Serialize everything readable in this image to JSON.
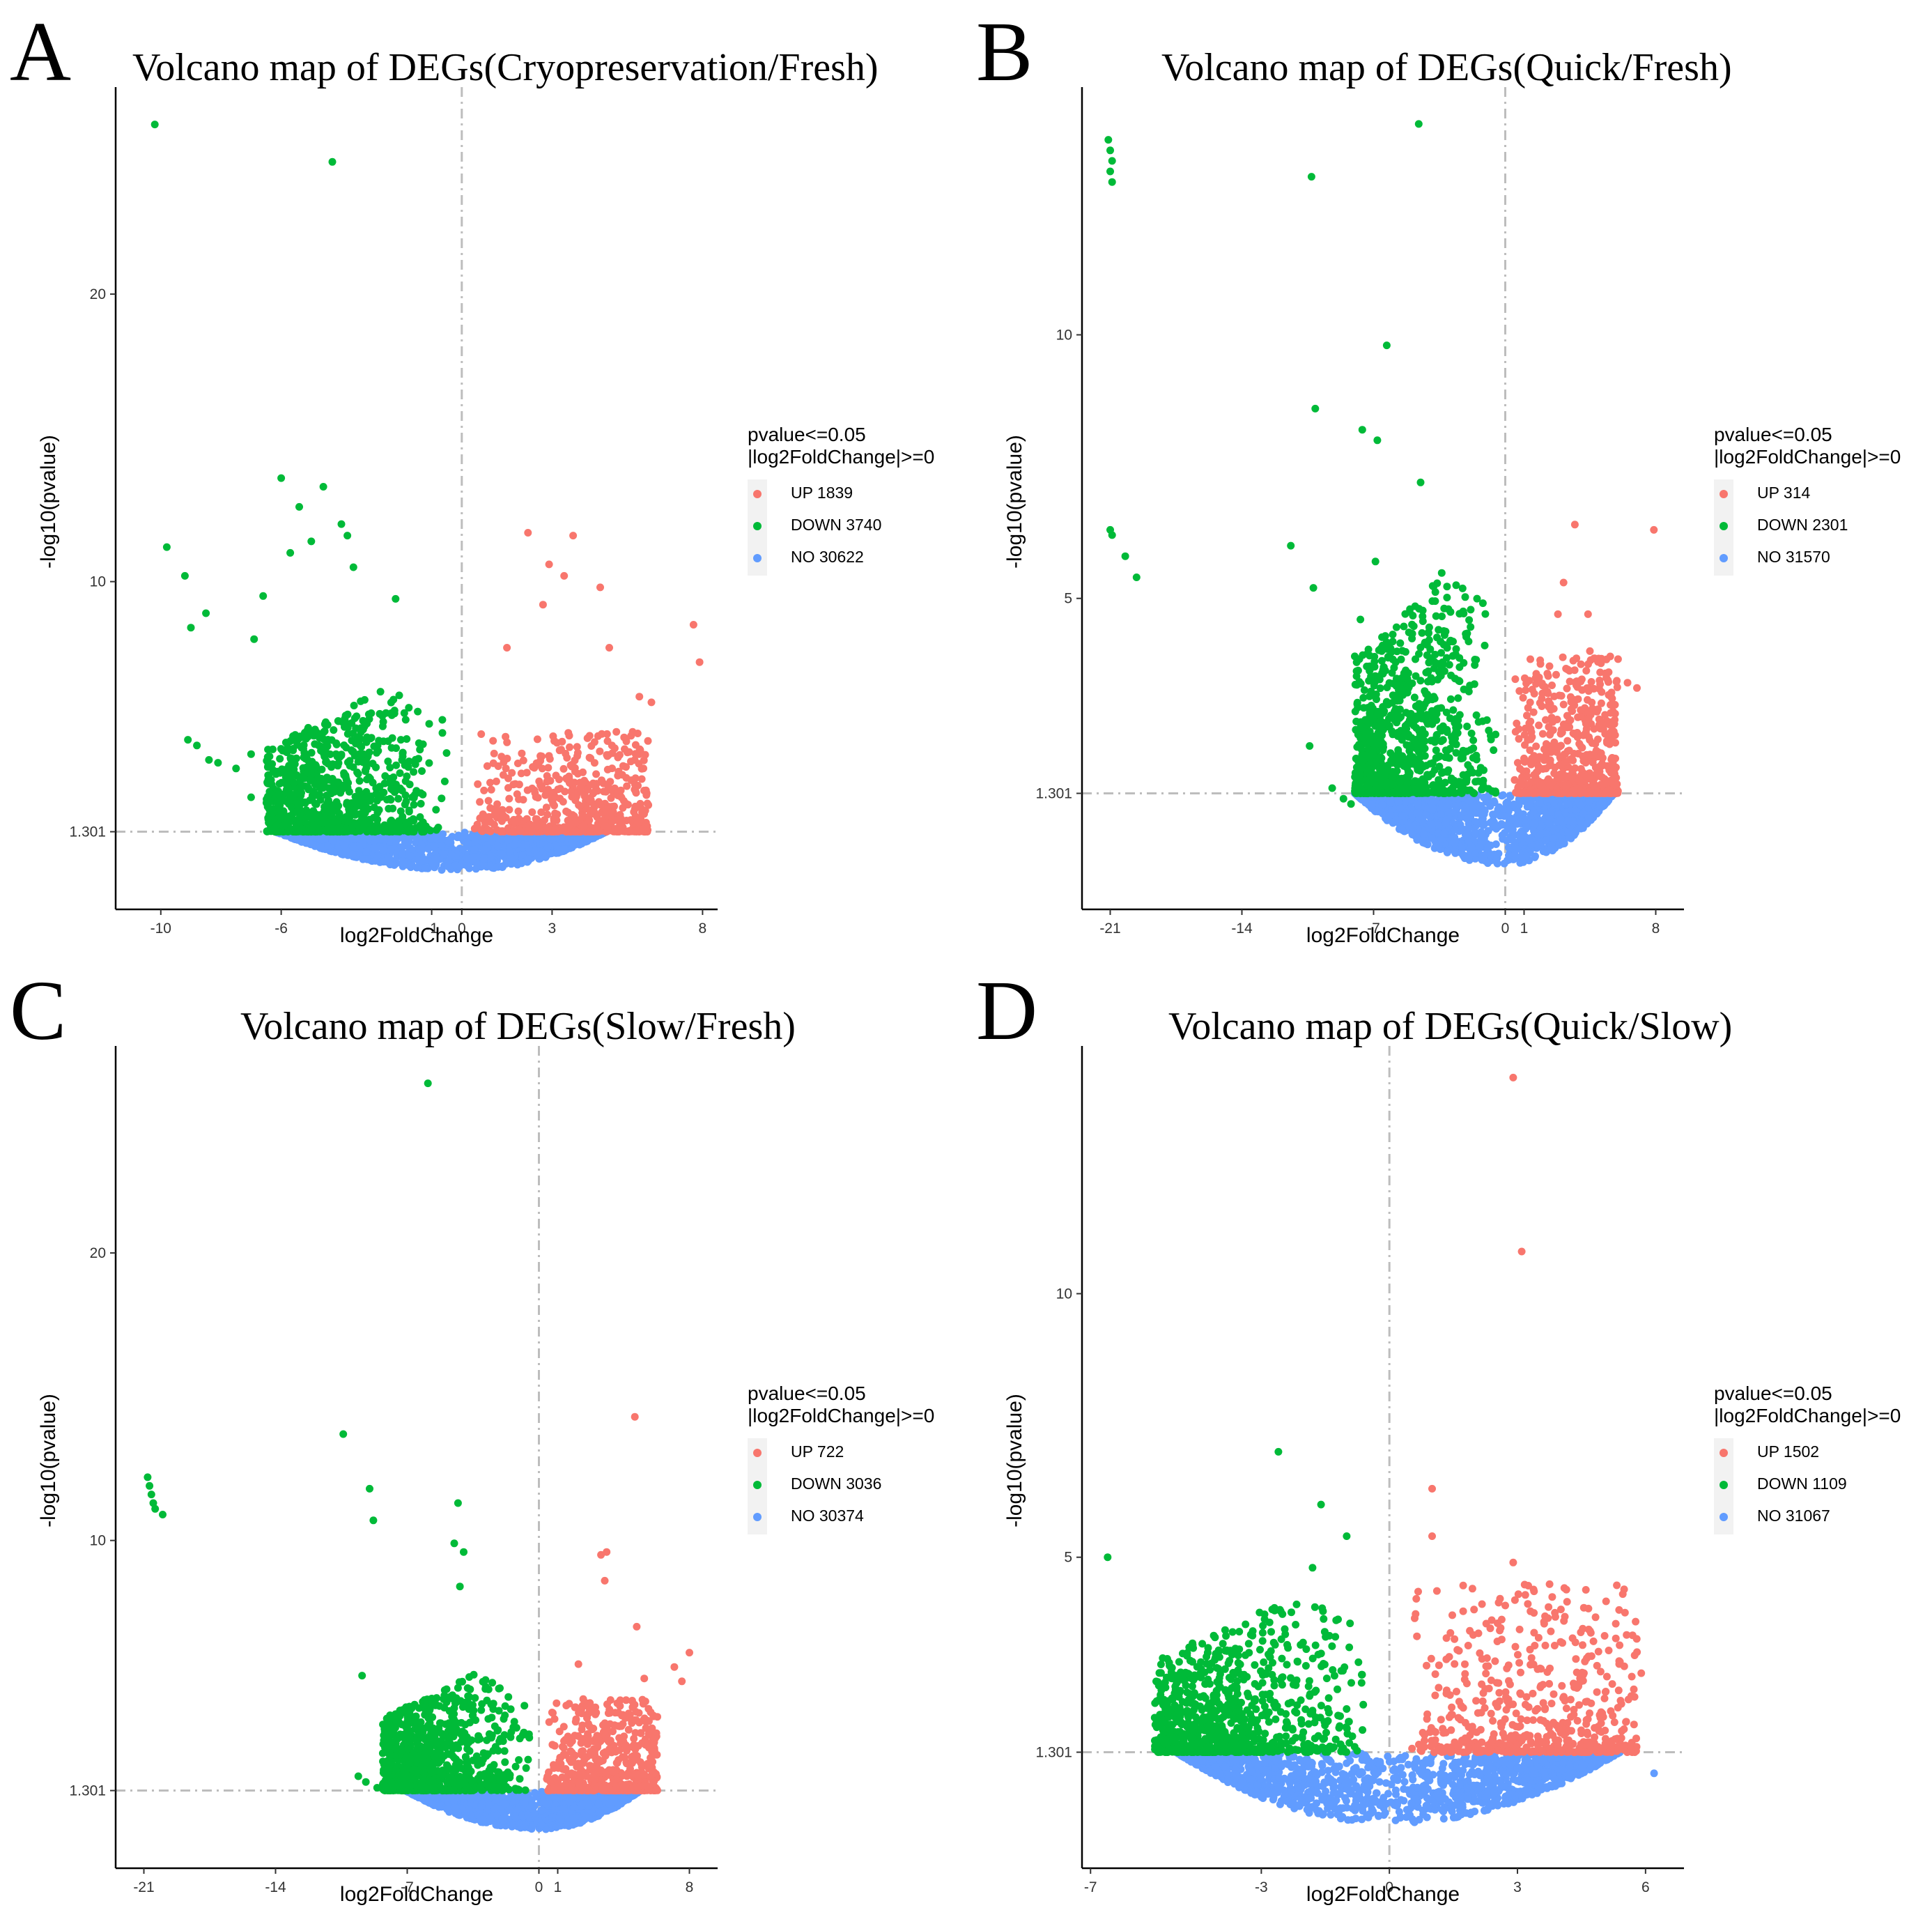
{
  "figure": {
    "legend_title_line1": "pvalue<=0.05",
    "legend_title_line2": "|log2FoldChange|>=0",
    "colors": {
      "up": "#f8766d",
      "down": "#00ba38",
      "no": "#619cff",
      "guide": "#bdbdbd",
      "axis": "#000000"
    }
  },
  "chart_data": [
    {
      "panel_letter": "A",
      "type": "scatter",
      "title": "Volcano map of DEGs(Cryopreservation/Fresh)",
      "xlabel": "log2FoldChange",
      "ylabel": "-log10(pvalue)",
      "xlim": [
        -11.5,
        8.5
      ],
      "ylim": [
        -1.4,
        27.2
      ],
      "xticks": [
        -10,
        -6,
        -1,
        0,
        3,
        8
      ],
      "yticks": [
        1.301,
        10,
        20
      ],
      "ytick_labels": [
        "1.301",
        "10",
        "20"
      ],
      "vline_x": 0,
      "hline_y": 1.301,
      "legend": [
        {
          "key": "up",
          "label": "UP 1839"
        },
        {
          "key": "down",
          "label": "DOWN 3740"
        },
        {
          "key": "no",
          "label": "NO 30622"
        }
      ],
      "cloud": {
        "down_xmin": -6.5,
        "up_xmax": 6.2,
        "no_xmin": -6.2,
        "no_xmax": 4.8,
        "down_peak": 5,
        "up_peak": 3.5
      },
      "outliers": {
        "down": [
          [
            -10.2,
            25.9
          ],
          [
            -4.3,
            24.6
          ],
          [
            -9.8,
            11.2
          ],
          [
            -9.2,
            10.2
          ],
          [
            -9.0,
            8.4
          ],
          [
            -8.5,
            8.9
          ],
          [
            -6.0,
            13.6
          ],
          [
            -4.6,
            13.3
          ],
          [
            -5.4,
            12.6
          ],
          [
            -4.0,
            12.0
          ],
          [
            -3.8,
            11.6
          ],
          [
            -5.0,
            11.4
          ],
          [
            -3.6,
            10.5
          ],
          [
            -6.6,
            9.5
          ],
          [
            -6.9,
            8.0
          ],
          [
            -5.7,
            11.0
          ],
          [
            -2.2,
            9.4
          ],
          [
            -9.1,
            4.5
          ],
          [
            -8.8,
            4.3
          ],
          [
            -8.4,
            3.8
          ],
          [
            -8.1,
            3.7
          ],
          [
            -7.5,
            3.5
          ],
          [
            -7.0,
            2.5
          ],
          [
            -7.0,
            4.0
          ]
        ],
        "up": [
          [
            2.2,
            11.7
          ],
          [
            3.7,
            11.6
          ],
          [
            2.9,
            10.6
          ],
          [
            3.4,
            10.2
          ],
          [
            4.6,
            9.8
          ],
          [
            2.7,
            9.2
          ],
          [
            7.7,
            8.5
          ],
          [
            7.9,
            7.2
          ],
          [
            4.9,
            7.7
          ],
          [
            1.5,
            7.7
          ],
          [
            5.9,
            6.0
          ],
          [
            6.3,
            5.8
          ]
        ]
      }
    },
    {
      "panel_letter": "B",
      "type": "scatter",
      "title": "Volcano map of DEGs(Quick/Fresh)",
      "xlabel": "log2FoldChange",
      "ylabel": "-log10(pvalue)",
      "xlim": [
        -22.5,
        9.5
      ],
      "ylim": [
        -0.9,
        14.7
      ],
      "xticks": [
        -21,
        -14,
        -7,
        0,
        1,
        8
      ],
      "yticks": [
        1.301,
        5,
        10
      ],
      "ytick_labels": [
        "1.301",
        "5",
        "10"
      ],
      "vline_x": 0,
      "hline_y": 1.301,
      "legend": [
        {
          "key": "up",
          "label": "UP 314"
        },
        {
          "key": "down",
          "label": "DOWN 2301"
        },
        {
          "key": "no",
          "label": "NO 31570"
        }
      ],
      "cloud": {
        "down_xmin": -8.0,
        "up_xmax": 6.0,
        "no_xmin": -8.0,
        "no_xmax": 5.8,
        "down_peak": 4.3,
        "up_peak": 2.6
      },
      "outliers": {
        "down": [
          [
            -21.1,
            13.7
          ],
          [
            -21.0,
            13.5
          ],
          [
            -20.9,
            13.3
          ],
          [
            -21.0,
            13.1
          ],
          [
            -20.9,
            12.9
          ],
          [
            -4.6,
            14.0
          ],
          [
            -10.3,
            13.0
          ],
          [
            -6.3,
            9.8
          ],
          [
            -10.1,
            8.6
          ],
          [
            -7.6,
            8.2
          ],
          [
            -6.8,
            8.0
          ],
          [
            -4.5,
            7.2
          ],
          [
            -21.0,
            6.3
          ],
          [
            -20.9,
            6.2
          ],
          [
            -20.2,
            5.8
          ],
          [
            -19.6,
            5.4
          ],
          [
            -11.4,
            6.0
          ],
          [
            -6.9,
            5.7
          ],
          [
            -10.2,
            5.2
          ],
          [
            -7.7,
            4.6
          ],
          [
            -8.0,
            3.9
          ],
          [
            -10.4,
            2.2
          ],
          [
            -9.2,
            1.4
          ],
          [
            -8.6,
            1.2
          ],
          [
            -8.2,
            1.1
          ],
          [
            -7.7,
            1.3
          ],
          [
            -7.3,
            1.3
          ]
        ],
        "up": [
          [
            3.7,
            6.4
          ],
          [
            7.9,
            6.3
          ],
          [
            3.1,
            5.3
          ],
          [
            2.8,
            4.7
          ],
          [
            4.4,
            4.7
          ],
          [
            4.5,
            4.0
          ],
          [
            1.8,
            3.5
          ],
          [
            7.0,
            3.3
          ],
          [
            6.5,
            3.4
          ]
        ]
      }
    },
    {
      "panel_letter": "C",
      "type": "scatter",
      "title": "Volcano map of DEGs(Slow/Fresh)",
      "xlabel": "log2FoldChange",
      "ylabel": "-log10(pvalue)",
      "xlim": [
        -22.5,
        9.5
      ],
      "ylim": [
        -1.4,
        27.2
      ],
      "xticks": [
        -21,
        -14,
        -7,
        0,
        1,
        8
      ],
      "yticks": [
        1.301,
        10,
        20
      ],
      "ytick_labels": [
        "1.301",
        "10",
        "20"
      ],
      "vline_x": 0,
      "hline_y": 1.301,
      "legend": [
        {
          "key": "up",
          "label": "UP 722"
        },
        {
          "key": "down",
          "label": "DOWN 3036"
        },
        {
          "key": "no",
          "label": "NO 30374"
        }
      ],
      "cloud": {
        "down_xmin": -8.3,
        "up_xmax": 6.3,
        "no_xmin": -7.1,
        "no_xmax": 5.4,
        "down_peak": 4.3,
        "up_peak": 3.2
      },
      "outliers": {
        "down": [
          [
            -5.9,
            25.9
          ],
          [
            -20.8,
            12.2
          ],
          [
            -20.7,
            11.9
          ],
          [
            -20.6,
            11.6
          ],
          [
            -20.5,
            11.3
          ],
          [
            -20.4,
            11.1
          ],
          [
            -20.0,
            10.9
          ],
          [
            -10.4,
            13.7
          ],
          [
            -9.0,
            11.8
          ],
          [
            -8.8,
            10.7
          ],
          [
            -4.3,
            11.3
          ],
          [
            -4.5,
            9.9
          ],
          [
            -4.0,
            9.6
          ],
          [
            -4.2,
            8.4
          ],
          [
            -9.4,
            5.3
          ],
          [
            -9.6,
            1.8
          ],
          [
            -9.2,
            1.6
          ],
          [
            -8.6,
            1.4
          ],
          [
            -8.0,
            1.8
          ],
          [
            -8.3,
            2.6
          ]
        ],
        "up": [
          [
            5.1,
            14.3
          ],
          [
            3.6,
            9.6
          ],
          [
            3.3,
            9.5
          ],
          [
            3.5,
            8.6
          ],
          [
            5.2,
            7.0
          ],
          [
            8.0,
            6.1
          ],
          [
            7.2,
            5.6
          ],
          [
            7.6,
            5.1
          ],
          [
            2.1,
            5.7
          ],
          [
            5.6,
            5.2
          ]
        ]
      }
    },
    {
      "panel_letter": "D",
      "type": "scatter",
      "title": "Volcano map of DEGs(Quick/Slow)",
      "xlabel": "log2FoldChange",
      "ylabel": "-log10(pvalue)",
      "xlim": [
        -7.2,
        6.9
      ],
      "ylim": [
        -0.9,
        14.7
      ],
      "xticks": [
        -7,
        -3,
        0,
        3,
        6
      ],
      "yticks": [
        1.301,
        5,
        10
      ],
      "ytick_labels": [
        "1.301",
        "5",
        "10"
      ],
      "vline_x": 0,
      "hline_y": 1.301,
      "legend": [
        {
          "key": "up",
          "label": "UP 1502"
        },
        {
          "key": "down",
          "label": "DOWN 1109"
        },
        {
          "key": "no",
          "label": "NO 31067"
        }
      ],
      "cloud": {
        "down_xmin": -5.5,
        "up_xmax": 5.8,
        "no_xmin": -5.0,
        "no_xmax": 5.4,
        "down_peak": 3.0,
        "up_peak": 3.2
      },
      "outliers": {
        "down": [
          [
            -2.6,
            7.0
          ],
          [
            -1.6,
            6.0
          ],
          [
            -6.6,
            5.0
          ],
          [
            -1.0,
            5.4
          ],
          [
            -1.8,
            4.8
          ],
          [
            -3.2,
            3.6
          ],
          [
            -5.1,
            2.7
          ],
          [
            -5.3,
            2.2
          ],
          [
            -4.7,
            2.3
          ]
        ],
        "up": [
          [
            2.9,
            14.1
          ],
          [
            3.1,
            10.8
          ],
          [
            1.0,
            6.3
          ],
          [
            1.0,
            5.4
          ],
          [
            2.9,
            4.9
          ],
          [
            4.7,
            3.6
          ],
          [
            5.8,
            3.2
          ],
          [
            5.9,
            2.8
          ],
          [
            5.6,
            2.3
          ]
        ],
        "no": [
          [
            6.2,
            0.9
          ]
        ]
      }
    }
  ]
}
